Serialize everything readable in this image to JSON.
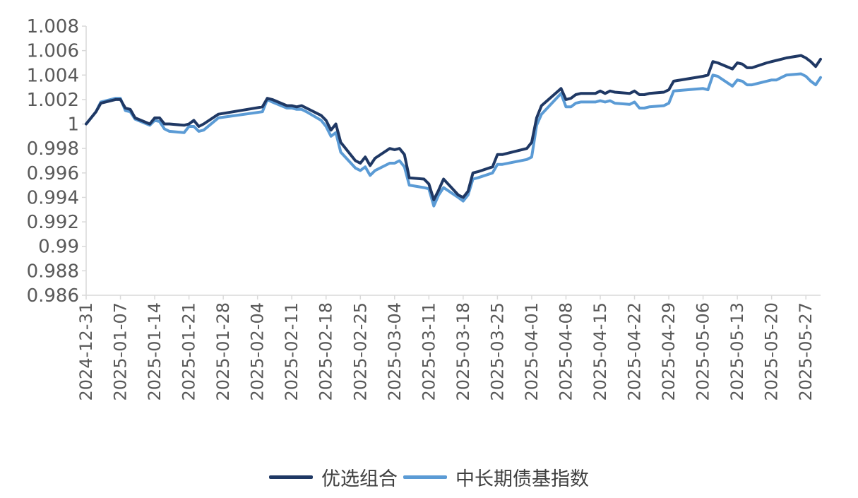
{
  "chart_data": {
    "type": "line",
    "ylim": [
      0.986,
      1.008
    ],
    "yticks": [
      "0.986",
      "0.988",
      "0.99",
      "0.992",
      "0.994",
      "0.996",
      "0.998",
      "1",
      "1.002",
      "1.004",
      "1.006",
      "1.008"
    ],
    "xticks": [
      "2024-12-31",
      "2025-01-07",
      "2025-01-14",
      "2025-01-21",
      "2025-01-28",
      "2025-02-04",
      "2025-02-11",
      "2025-02-18",
      "2025-02-25",
      "2025-03-04",
      "2025-03-11",
      "2025-03-18",
      "2025-03-25",
      "2025-04-01",
      "2025-04-08",
      "2025-04-15",
      "2025-04-22",
      "2025-04-29",
      "2025-05-06",
      "2025-05-13",
      "2025-05-20",
      "2025-05-27"
    ],
    "xrange": [
      "2024-12-31",
      "2025-05-30"
    ],
    "series": [
      {
        "name": "优选组合",
        "color": "#1f3864",
        "points": [
          [
            "2024-12-31",
            1.0
          ],
          [
            "2025-01-02",
            1.001
          ],
          [
            "2025-01-03",
            1.0017
          ],
          [
            "2025-01-06",
            1.002
          ],
          [
            "2025-01-07",
            1.002
          ],
          [
            "2025-01-08",
            1.0013
          ],
          [
            "2025-01-09",
            1.0012
          ],
          [
            "2025-01-10",
            1.0005
          ],
          [
            "2025-01-13",
            1.0
          ],
          [
            "2025-01-14",
            1.0005
          ],
          [
            "2025-01-15",
            1.0005
          ],
          [
            "2025-01-16",
            1.0
          ],
          [
            "2025-01-17",
            1.0
          ],
          [
            "2025-01-20",
            0.9999
          ],
          [
            "2025-01-21",
            1.0
          ],
          [
            "2025-01-22",
            1.0003
          ],
          [
            "2025-01-23",
            0.9998
          ],
          [
            "2025-01-24",
            1.0
          ],
          [
            "2025-01-27",
            1.0008
          ],
          [
            "2025-02-05",
            1.0014
          ],
          [
            "2025-02-06",
            1.0021
          ],
          [
            "2025-02-07",
            1.002
          ],
          [
            "2025-02-10",
            1.0015
          ],
          [
            "2025-02-11",
            1.0015
          ],
          [
            "2025-02-12",
            1.0014
          ],
          [
            "2025-02-13",
            1.0015
          ],
          [
            "2025-02-14",
            1.0013
          ],
          [
            "2025-02-17",
            1.0007
          ],
          [
            "2025-02-18",
            1.0003
          ],
          [
            "2025-02-19",
            0.9995
          ],
          [
            "2025-02-20",
            1.0
          ],
          [
            "2025-02-21",
            0.9985
          ],
          [
            "2025-02-24",
            0.997
          ],
          [
            "2025-02-25",
            0.9968
          ],
          [
            "2025-02-26",
            0.9973
          ],
          [
            "2025-02-27",
            0.9966
          ],
          [
            "2025-02-28",
            0.9972
          ],
          [
            "2025-03-03",
            0.998
          ],
          [
            "2025-03-04",
            0.9979
          ],
          [
            "2025-03-05",
            0.998
          ],
          [
            "2025-03-06",
            0.9975
          ],
          [
            "2025-03-07",
            0.9956
          ],
          [
            "2025-03-10",
            0.9955
          ],
          [
            "2025-03-11",
            0.9951
          ],
          [
            "2025-03-12",
            0.9938
          ],
          [
            "2025-03-13",
            0.9946
          ],
          [
            "2025-03-14",
            0.9955
          ],
          [
            "2025-03-17",
            0.9942
          ],
          [
            "2025-03-18",
            0.994
          ],
          [
            "2025-03-19",
            0.9945
          ],
          [
            "2025-03-20",
            0.996
          ],
          [
            "2025-03-21",
            0.9961
          ],
          [
            "2025-03-24",
            0.9965
          ],
          [
            "2025-03-25",
            0.9975
          ],
          [
            "2025-03-26",
            0.9975
          ],
          [
            "2025-03-31",
            0.998
          ],
          [
            "2025-04-01",
            0.9985
          ],
          [
            "2025-04-02",
            1.0005
          ],
          [
            "2025-04-03",
            1.0015
          ],
          [
            "2025-04-07",
            1.0029
          ],
          [
            "2025-04-08",
            1.002
          ],
          [
            "2025-04-09",
            1.0021
          ],
          [
            "2025-04-10",
            1.0024
          ],
          [
            "2025-04-11",
            1.0025
          ],
          [
            "2025-04-14",
            1.0025
          ],
          [
            "2025-04-15",
            1.0027
          ],
          [
            "2025-04-16",
            1.0025
          ],
          [
            "2025-04-17",
            1.0027
          ],
          [
            "2025-04-18",
            1.0026
          ],
          [
            "2025-04-21",
            1.0025
          ],
          [
            "2025-04-22",
            1.0027
          ],
          [
            "2025-04-23",
            1.0024
          ],
          [
            "2025-04-24",
            1.0024
          ],
          [
            "2025-04-25",
            1.0025
          ],
          [
            "2025-04-28",
            1.0026
          ],
          [
            "2025-04-29",
            1.0028
          ],
          [
            "2025-04-30",
            1.0035
          ],
          [
            "2025-05-06",
            1.0039
          ],
          [
            "2025-05-07",
            1.004
          ],
          [
            "2025-05-08",
            1.0051
          ],
          [
            "2025-05-09",
            1.005
          ],
          [
            "2025-05-12",
            1.0045
          ],
          [
            "2025-05-13",
            1.005
          ],
          [
            "2025-05-14",
            1.0049
          ],
          [
            "2025-05-15",
            1.0046
          ],
          [
            "2025-05-16",
            1.0046
          ],
          [
            "2025-05-19",
            1.005
          ],
          [
            "2025-05-20",
            1.0051
          ],
          [
            "2025-05-21",
            1.0052
          ],
          [
            "2025-05-22",
            1.0053
          ],
          [
            "2025-05-23",
            1.0054
          ],
          [
            "2025-05-26",
            1.0056
          ],
          [
            "2025-05-27",
            1.0054
          ],
          [
            "2025-05-28",
            1.0051
          ],
          [
            "2025-05-29",
            1.0047
          ],
          [
            "2025-05-30",
            1.0053
          ]
        ]
      },
      {
        "name": "中长期债基指数",
        "color": "#5b9bd5",
        "points": [
          [
            "2024-12-31",
            1.0
          ],
          [
            "2025-01-02",
            1.001
          ],
          [
            "2025-01-03",
            1.0018
          ],
          [
            "2025-01-06",
            1.0021
          ],
          [
            "2025-01-07",
            1.0021
          ],
          [
            "2025-01-08",
            1.0011
          ],
          [
            "2025-01-09",
            1.001
          ],
          [
            "2025-01-10",
            1.0004
          ],
          [
            "2025-01-13",
            0.9999
          ],
          [
            "2025-01-14",
            1.0003
          ],
          [
            "2025-01-15",
            1.0002
          ],
          [
            "2025-01-16",
            0.9996
          ],
          [
            "2025-01-17",
            0.9994
          ],
          [
            "2025-01-20",
            0.9993
          ],
          [
            "2025-01-21",
            0.9998
          ],
          [
            "2025-01-22",
            0.9998
          ],
          [
            "2025-01-23",
            0.9994
          ],
          [
            "2025-01-24",
            0.9995
          ],
          [
            "2025-01-27",
            1.0005
          ],
          [
            "2025-02-05",
            1.001
          ],
          [
            "2025-02-06",
            1.002
          ],
          [
            "2025-02-07",
            1.0018
          ],
          [
            "2025-02-10",
            1.0013
          ],
          [
            "2025-02-11",
            1.0013
          ],
          [
            "2025-02-12",
            1.0012
          ],
          [
            "2025-02-13",
            1.0012
          ],
          [
            "2025-02-14",
            1.001
          ],
          [
            "2025-02-17",
            1.0003
          ],
          [
            "2025-02-18",
            0.9998
          ],
          [
            "2025-02-19",
            0.999
          ],
          [
            "2025-02-20",
            0.9993
          ],
          [
            "2025-02-21",
            0.9977
          ],
          [
            "2025-02-24",
            0.9964
          ],
          [
            "2025-02-25",
            0.9962
          ],
          [
            "2025-02-26",
            0.9965
          ],
          [
            "2025-02-27",
            0.9958
          ],
          [
            "2025-02-28",
            0.9962
          ],
          [
            "2025-03-03",
            0.9968
          ],
          [
            "2025-03-04",
            0.9968
          ],
          [
            "2025-03-05",
            0.997
          ],
          [
            "2025-03-06",
            0.9965
          ],
          [
            "2025-03-07",
            0.995
          ],
          [
            "2025-03-10",
            0.9948
          ],
          [
            "2025-03-11",
            0.9947
          ],
          [
            "2025-03-12",
            0.9933
          ],
          [
            "2025-03-13",
            0.9942
          ],
          [
            "2025-03-14",
            0.9948
          ],
          [
            "2025-03-17",
            0.994
          ],
          [
            "2025-03-18",
            0.9937
          ],
          [
            "2025-03-19",
            0.9942
          ],
          [
            "2025-03-20",
            0.9955
          ],
          [
            "2025-03-21",
            0.9956
          ],
          [
            "2025-03-24",
            0.996
          ],
          [
            "2025-03-25",
            0.9967
          ],
          [
            "2025-03-26",
            0.9967
          ],
          [
            "2025-03-31",
            0.9971
          ],
          [
            "2025-04-01",
            0.9973
          ],
          [
            "2025-04-02",
            0.9999
          ],
          [
            "2025-04-03",
            1.0008
          ],
          [
            "2025-04-07",
            1.0025
          ],
          [
            "2025-04-08",
            1.0014
          ],
          [
            "2025-04-09",
            1.0014
          ],
          [
            "2025-04-10",
            1.0017
          ],
          [
            "2025-04-11",
            1.0018
          ],
          [
            "2025-04-14",
            1.0018
          ],
          [
            "2025-04-15",
            1.0019
          ],
          [
            "2025-04-16",
            1.0018
          ],
          [
            "2025-04-17",
            1.0019
          ],
          [
            "2025-04-18",
            1.0017
          ],
          [
            "2025-04-21",
            1.0016
          ],
          [
            "2025-04-22",
            1.0018
          ],
          [
            "2025-04-23",
            1.0013
          ],
          [
            "2025-04-24",
            1.0013
          ],
          [
            "2025-04-25",
            1.0014
          ],
          [
            "2025-04-28",
            1.0015
          ],
          [
            "2025-04-29",
            1.0017
          ],
          [
            "2025-04-30",
            1.0027
          ],
          [
            "2025-05-06",
            1.0029
          ],
          [
            "2025-05-07",
            1.0028
          ],
          [
            "2025-05-08",
            1.004
          ],
          [
            "2025-05-09",
            1.0039
          ],
          [
            "2025-05-12",
            1.0031
          ],
          [
            "2025-05-13",
            1.0036
          ],
          [
            "2025-05-14",
            1.0035
          ],
          [
            "2025-05-15",
            1.0032
          ],
          [
            "2025-05-16",
            1.0032
          ],
          [
            "2025-05-19",
            1.0035
          ],
          [
            "2025-05-20",
            1.0036
          ],
          [
            "2025-05-21",
            1.0036
          ],
          [
            "2025-05-22",
            1.0038
          ],
          [
            "2025-05-23",
            1.004
          ],
          [
            "2025-05-26",
            1.0041
          ],
          [
            "2025-05-27",
            1.0039
          ],
          [
            "2025-05-28",
            1.0035
          ],
          [
            "2025-05-29",
            1.0032
          ],
          [
            "2025-05-30",
            1.0038
          ]
        ]
      }
    ],
    "grid": false,
    "legend_position": "bottom-center"
  }
}
